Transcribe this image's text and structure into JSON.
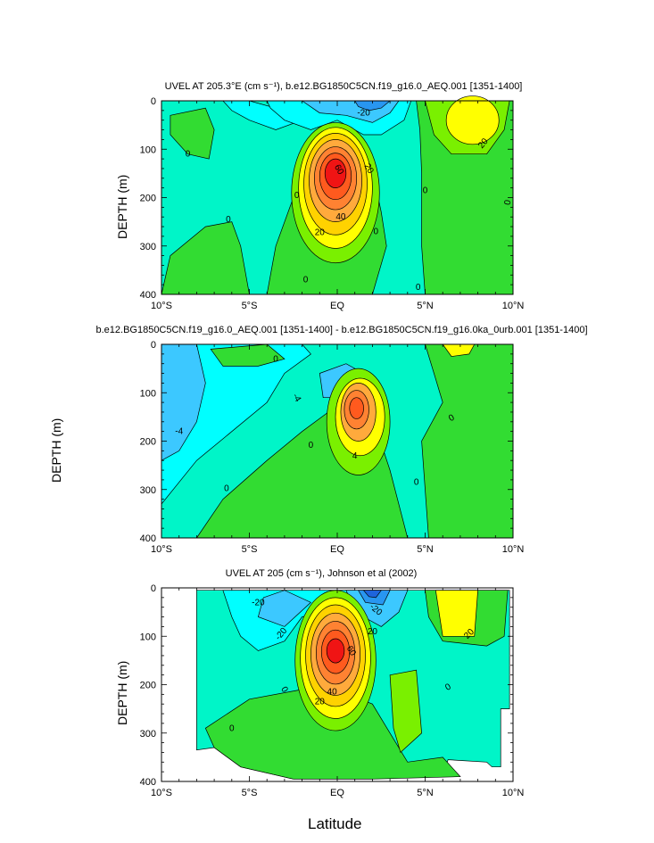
{
  "chart_data": [
    {
      "type": "contour",
      "title": "UVEL AT 205.3°E (cm s⁻¹), b.e12.BG1850C5CN.f19_g16.0_AEQ.001 [1351-1400]",
      "ylabel": "DEPTH (m)",
      "xlabel": "",
      "x_ticks": [
        "10°S",
        "5°S",
        "EQ",
        "5°N",
        "10°N"
      ],
      "y_ticks": [
        "0",
        "100",
        "200",
        "300",
        "400"
      ],
      "xlim": [
        -10,
        10
      ],
      "ylim": [
        400,
        0
      ],
      "contour_labels": [
        "0",
        "0",
        "0",
        "0",
        "0",
        "0",
        "0",
        "0",
        "20",
        "20",
        "20",
        "40",
        "60",
        "-20"
      ],
      "features": [
        {
          "name": "core",
          "lat": 0,
          "depth": 150,
          "value": 80
        },
        {
          "name": "northern jet",
          "lat": 7.5,
          "depth": 40,
          "value": 30
        },
        {
          "name": "surface westward flow",
          "lat": 1.5,
          "depth": 15,
          "value": -30
        }
      ]
    },
    {
      "type": "contour",
      "title": "b.e12.BG1850C5CN.f19_g16.0_AEQ.001 [1351-1400] - b.e12.BG1850C5CN.f19_g16.0ka_0urb.001 [1351-1400]",
      "ylabel": "DEPTH (m)",
      "xlabel": "",
      "x_ticks": [
        "10°S",
        "5°S",
        "EQ",
        "5°N",
        "10°N"
      ],
      "y_ticks": [
        "0",
        "100",
        "200",
        "300",
        "400"
      ],
      "xlim": [
        -10,
        10
      ],
      "ylim": [
        400,
        0
      ],
      "contour_labels": [
        "0",
        "0",
        "0",
        "0",
        "0",
        "-4",
        "-4",
        "4"
      ],
      "features": [
        {
          "name": "difference core",
          "lat": 1,
          "depth": 130,
          "value": 12
        },
        {
          "name": "western negative",
          "lat": -9.5,
          "depth": 100,
          "value": -8
        }
      ]
    },
    {
      "type": "contour",
      "title": "UVEL AT 205 (cm s⁻¹), Johnson et al (2002)",
      "ylabel": "DEPTH (m)",
      "xlabel": "Latitude",
      "x_ticks": [
        "10°S",
        "5°S",
        "EQ",
        "5°N",
        "10°N"
      ],
      "y_ticks": [
        "0",
        "100",
        "200",
        "300",
        "400"
      ],
      "xlim": [
        -10,
        10
      ],
      "ylim": [
        400,
        0
      ],
      "contour_labels": [
        "-20",
        "-20",
        "-20",
        "0",
        "0",
        "0",
        "20",
        "20",
        "20",
        "40",
        "60"
      ],
      "features": [
        {
          "name": "core",
          "lat": 0,
          "depth": 130,
          "value": 90
        },
        {
          "name": "northern jet",
          "lat": 7,
          "depth": 50,
          "value": 40
        },
        {
          "name": "surface westward flow",
          "lat": 2,
          "depth": 20,
          "value": -50
        }
      ]
    }
  ],
  "figure": {
    "ylabel_side": "DEPTH (m)",
    "xlabel": "Latitude"
  },
  "colors": {
    "c_m60": "#1e64dc",
    "c_m40": "#2896f0",
    "c_m20": "#3cc8ff",
    "c_m10": "#00ffff",
    "c_0": "#00f5c8",
    "c_p10": "#32dc32",
    "c_p20": "#7af000",
    "c_p30": "#ffff00",
    "c_p40": "#ffd200",
    "c_p50": "#ffaa3c",
    "c_p60": "#ff8232",
    "c_p70": "#ff5a1e",
    "c_p80": "#f01414"
  }
}
